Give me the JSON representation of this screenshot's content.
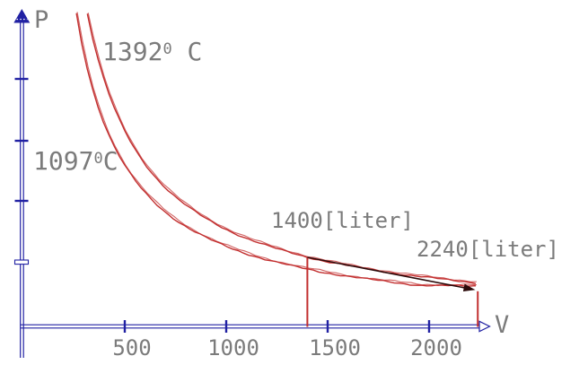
{
  "axes": {
    "y_label": "P",
    "x_label": "V",
    "x_tick_labels": [
      "500",
      "1000",
      "1500",
      "2000"
    ]
  },
  "labels": {
    "temp_high": {
      "value": "1392",
      "sup": "0",
      "unit": " C"
    },
    "temp_low": {
      "value": "1097",
      "sup": "0",
      "unit": "C"
    },
    "volume_start": "1400[liter]",
    "volume_end": "2240[liter]"
  },
  "colors": {
    "axis": "#2121a3",
    "curve": "#c22f2f",
    "text": "#7b7b7b",
    "arrow": "#2b0a0a"
  },
  "chart_data": {
    "type": "line",
    "title": "",
    "xlabel": "V",
    "ylabel": "P",
    "x_axis_range": [
      0,
      2300
    ],
    "x_ticks": [
      500,
      1000,
      1500,
      2000
    ],
    "grid": false,
    "legend": "curve labels drawn inline",
    "series": [
      {
        "name": "1392° C isotherm",
        "temperature_C": 1392,
        "x_liter": [
          310,
          400,
          500,
          700,
          900,
          1100,
          1400,
          1700,
          2000,
          2240
        ],
        "values_P_arbitrary": [
          5.37,
          4.16,
          3.33,
          2.38,
          1.85,
          1.51,
          1.19,
          0.98,
          0.83,
          0.74
        ]
      },
      {
        "name": "1097°C isotherm",
        "temperature_C": 1097,
        "x_liter": [
          250,
          310,
          400,
          500,
          700,
          900,
          1100,
          1400,
          1700,
          2000,
          2240
        ],
        "values_P_arbitrary": [
          5.48,
          4.42,
          3.43,
          2.74,
          1.96,
          1.52,
          1.25,
          0.98,
          0.81,
          0.69,
          0.61
        ]
      }
    ],
    "annotations": {
      "marked_volumes_liter": [
        1400,
        2240
      ],
      "arrow": {
        "from": {
          "v_liter": 1400,
          "on_isotherm_C": 1392
        },
        "to": {
          "v_liter": 2240,
          "on_isotherm_C": 1097
        }
      }
    }
  }
}
